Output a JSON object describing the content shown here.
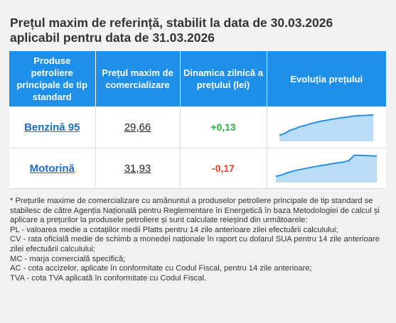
{
  "title_line1": "Prețul maxim de referință, stabilit la data de 30.03.2026",
  "title_line2": "aplicabil pentru data de 31.03.2026",
  "table": {
    "headers": [
      "Produse petroliere principale de tip standard",
      "Prețul maxim de comercializare",
      "Dinamica zilnică a prețului (lei)",
      "Evoluția prețului"
    ],
    "rows": [
      {
        "product": "Benzină 95",
        "price": "29,66",
        "delta": "+0,13",
        "trend": "up",
        "sparkline": [
          2,
          2.6,
          3.8,
          4.4,
          5.2,
          5.6,
          6.3,
          6.7,
          7.2,
          7.5,
          7.9,
          8.2,
          8.5,
          8.7,
          9.0,
          9.2,
          9.3,
          9.4,
          9.5
        ]
      },
      {
        "product": "Motorină",
        "price": "31,93",
        "delta": "-0,17",
        "trend": "down",
        "sparkline": [
          2,
          2.5,
          3.3,
          3.9,
          4.4,
          4.8,
          5.2,
          5.6,
          6.0,
          6.3,
          6.7,
          7.0,
          7.3,
          7.8,
          9.8,
          9.8,
          9.7,
          9.6,
          9.5
        ]
      }
    ]
  },
  "colors": {
    "header_bg": "#1e90ea",
    "up": "#22b43b",
    "down": "#e8412b",
    "link": "#1a6fc2",
    "spark_line": "#2a8ee6",
    "spark_fill": "#b9dcf7"
  },
  "notes": [
    "* Prețurile maxime de comercializare cu amănuntul a produselor petroliere principale de tip standard se stabilesc de către Agenția Națională pentru Reglementare în Energetică în baza Metodologiei de calcul și aplicare a prețurilor la produsele petroliere și sunt calculate reieșind din următoarele:",
    "PL - valoarea medie a cotațiilor medii Platts pentru 14 zile anterioare zilei efectuării calculului;",
    "CV - rata oficială medie de schimb a monedei naționale în raport cu dolarul SUA pentru 14 zile anterioare zilei efectuării calculului;",
    "MC - marja comercială specifică;",
    "AC - cota accizelor, aplicate în conformitate cu Codul Fiscal, pentru 14 zile anterioare;",
    "TVA - cota TVA aplicată în conformitate cu Codul Fiscal."
  ]
}
